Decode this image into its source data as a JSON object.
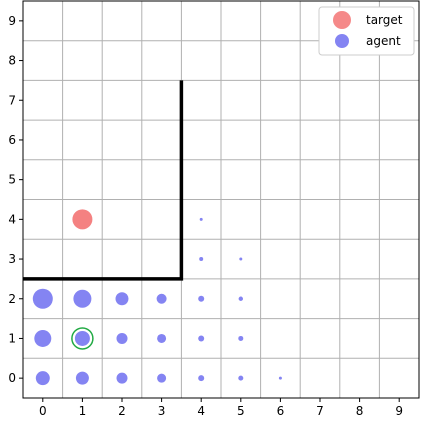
{
  "chart_data": {
    "type": "scatter",
    "title": "",
    "xlabel": "",
    "ylabel": "",
    "xlim": [
      -0.5,
      9.5
    ],
    "ylim": [
      -0.5,
      9.5
    ],
    "xticks": [
      "0",
      "1",
      "2",
      "3",
      "4",
      "5",
      "6",
      "7",
      "8",
      "9"
    ],
    "yticks": [
      "0",
      "1",
      "2",
      "3",
      "4",
      "5",
      "6",
      "7",
      "8",
      "9"
    ],
    "grid": true,
    "legend_position": "top-right",
    "legend": [
      {
        "label": "target",
        "color": "#f26b6b"
      },
      {
        "label": "agent",
        "color": "#6f6ff0"
      }
    ],
    "wall": [
      [
        -0.5,
        2.5
      ],
      [
        3.5,
        2.5
      ],
      [
        3.5,
        7.5
      ]
    ],
    "target": {
      "name": "target",
      "x": 1,
      "y": 4,
      "color": "#f26b6b"
    },
    "agent_position": {
      "x": 1,
      "y": 1,
      "marker_color": "#22aa44"
    },
    "agent_series": {
      "name": "agent",
      "color": "#6f6ff0",
      "points": [
        {
          "x": 0,
          "y": 0,
          "size": 0.7
        },
        {
          "x": 1,
          "y": 0,
          "size": 0.65
        },
        {
          "x": 2,
          "y": 0,
          "size": 0.55
        },
        {
          "x": 3,
          "y": 0,
          "size": 0.45
        },
        {
          "x": 4,
          "y": 0,
          "size": 0.3
        },
        {
          "x": 5,
          "y": 0,
          "size": 0.25
        },
        {
          "x": 6,
          "y": 0,
          "size": 0.15
        },
        {
          "x": 0,
          "y": 1,
          "size": 0.85
        },
        {
          "x": 1,
          "y": 1,
          "size": 0.75
        },
        {
          "x": 2,
          "y": 1,
          "size": 0.55
        },
        {
          "x": 3,
          "y": 1,
          "size": 0.45
        },
        {
          "x": 4,
          "y": 1,
          "size": 0.3
        },
        {
          "x": 5,
          "y": 1,
          "size": 0.25
        },
        {
          "x": 0,
          "y": 2,
          "size": 1.0
        },
        {
          "x": 1,
          "y": 2,
          "size": 0.9
        },
        {
          "x": 2,
          "y": 2,
          "size": 0.65
        },
        {
          "x": 3,
          "y": 2,
          "size": 0.5
        },
        {
          "x": 4,
          "y": 2,
          "size": 0.3
        },
        {
          "x": 5,
          "y": 2,
          "size": 0.22
        },
        {
          "x": 4,
          "y": 3,
          "size": 0.2
        },
        {
          "x": 5,
          "y": 3,
          "size": 0.15
        },
        {
          "x": 4,
          "y": 4,
          "size": 0.15
        }
      ]
    }
  }
}
